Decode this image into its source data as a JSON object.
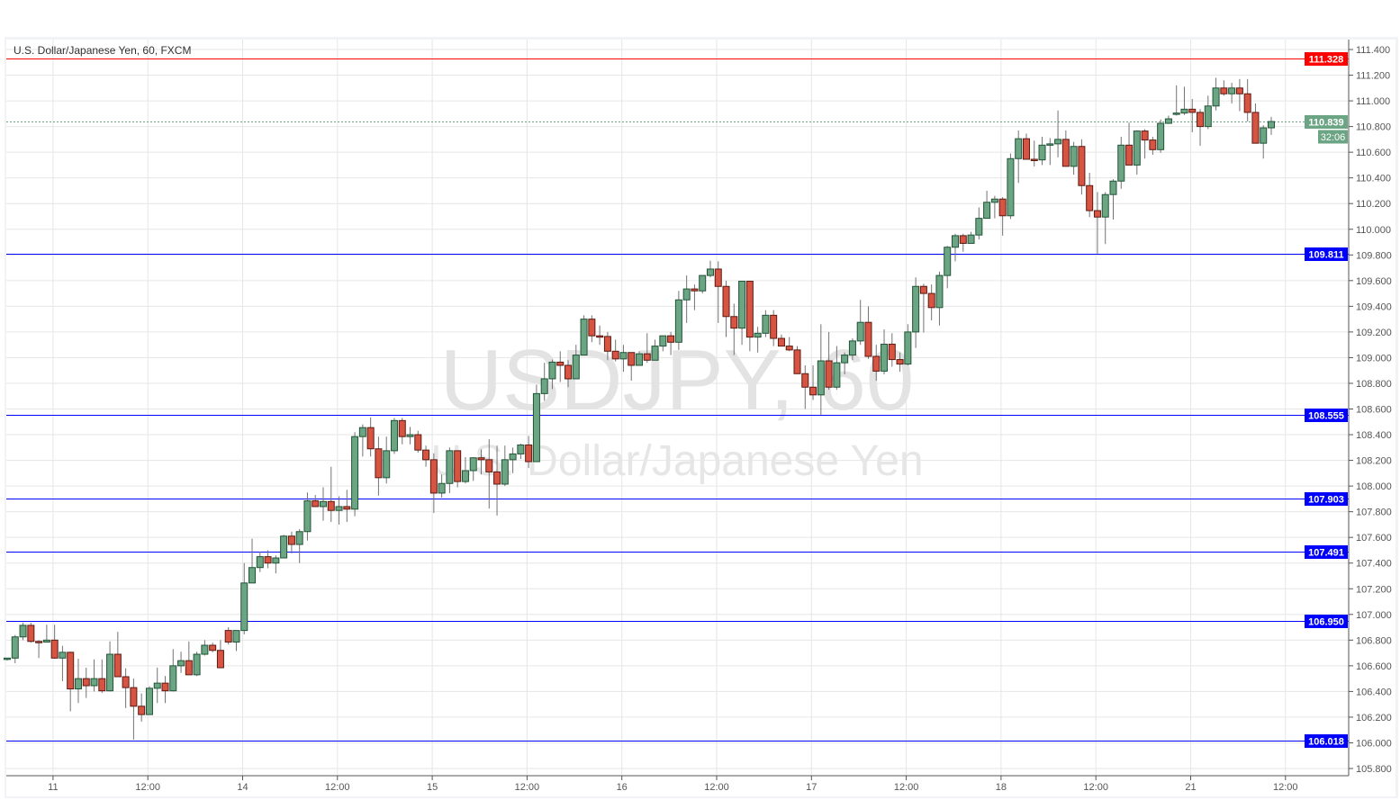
{
  "header": {
    "title": "U.S. Dollar/Japanese Yen, 60, FXCM"
  },
  "watermark": {
    "symbol": "USDJPY, 60",
    "name": "U.S. Dollar/Japanese Yen"
  },
  "chart_data": {
    "type": "candlestick",
    "title": "U.S. Dollar/Japanese Yen, 60, FXCM",
    "symbol": "USDJPY",
    "interval_minutes": 60,
    "source": "FXCM",
    "ylim": [
      105.72,
      111.48
    ],
    "y_ticks": [
      "111.400",
      "111.200",
      "111.000",
      "110.800",
      "110.600",
      "110.400",
      "110.200",
      "110.000",
      "109.800",
      "109.600",
      "109.400",
      "109.200",
      "109.000",
      "108.800",
      "108.600",
      "108.400",
      "108.200",
      "108.000",
      "107.800",
      "107.600",
      "107.400",
      "107.200",
      "107.000",
      "106.800",
      "106.600",
      "106.400",
      "106.200",
      "106.000",
      "105.800"
    ],
    "x_ticks": [
      "11",
      "12:00",
      "14",
      "12:00",
      "15",
      "12:00",
      "16",
      "12:00",
      "17",
      "12:00",
      "18",
      "12:00",
      "21",
      "12:00"
    ],
    "grid": true,
    "ohlc_fields": [
      "open",
      "high",
      "low",
      "close"
    ],
    "candles": [
      [
        106.65,
        106.66,
        106.64,
        106.66
      ],
      [
        106.66,
        106.84,
        106.62,
        106.825
      ],
      [
        106.825,
        106.935,
        106.8,
        106.915
      ],
      [
        106.915,
        106.935,
        106.78,
        106.79
      ],
      [
        106.79,
        106.8,
        106.66,
        106.785
      ],
      [
        106.785,
        106.92,
        106.78,
        106.8
      ],
      [
        106.8,
        106.92,
        106.655,
        106.66
      ],
      [
        106.66,
        106.755,
        106.48,
        106.705
      ],
      [
        106.705,
        106.71,
        106.245,
        106.42
      ],
      [
        106.42,
        106.655,
        106.31,
        106.5
      ],
      [
        106.5,
        106.585,
        106.35,
        106.445
      ],
      [
        106.445,
        106.65,
        106.4,
        106.5
      ],
      [
        106.5,
        106.65,
        106.39,
        106.405
      ],
      [
        106.405,
        106.79,
        106.4,
        106.69
      ],
      [
        106.69,
        106.865,
        106.515,
        106.515
      ],
      [
        106.515,
        106.58,
        106.27,
        106.43
      ],
      [
        106.43,
        106.5,
        106.025,
        106.285
      ],
      [
        106.285,
        106.385,
        106.165,
        106.22
      ],
      [
        106.22,
        106.44,
        106.22,
        106.425
      ],
      [
        106.425,
        106.585,
        106.31,
        106.465
      ],
      [
        106.465,
        106.52,
        106.31,
        106.405
      ],
      [
        106.405,
        106.73,
        106.4,
        106.6
      ],
      [
        106.6,
        106.71,
        106.545,
        106.64
      ],
      [
        106.64,
        106.79,
        106.53,
        106.53
      ],
      [
        106.53,
        106.71,
        106.52,
        106.69
      ],
      [
        106.69,
        106.8,
        106.68,
        106.76
      ],
      [
        106.76,
        106.78,
        106.705,
        106.72
      ],
      [
        106.72,
        106.8,
        106.585,
        106.585
      ],
      [
        106.875,
        106.9,
        106.765,
        106.785
      ],
      [
        106.785,
        106.875,
        106.715,
        106.875
      ],
      [
        106.875,
        107.4,
        106.845,
        107.245
      ],
      [
        107.245,
        107.59,
        107.245,
        107.365
      ],
      [
        107.365,
        107.49,
        107.33,
        107.45
      ],
      [
        107.45,
        107.5,
        107.36,
        107.4
      ],
      [
        107.4,
        107.46,
        107.32,
        107.44
      ],
      [
        107.44,
        107.62,
        107.44,
        107.61
      ],
      [
        107.61,
        107.645,
        107.475,
        107.545
      ],
      [
        107.545,
        107.665,
        107.4,
        107.645
      ],
      [
        107.645,
        107.95,
        107.575,
        107.885
      ],
      [
        107.885,
        107.93,
        107.84,
        107.84
      ],
      [
        107.84,
        107.99,
        107.73,
        107.88
      ],
      [
        107.88,
        108.15,
        107.72,
        107.81
      ],
      [
        107.81,
        107.92,
        107.7,
        107.84
      ],
      [
        107.84,
        107.97,
        107.72,
        107.82
      ],
      [
        107.82,
        108.42,
        107.765,
        108.385
      ],
      [
        108.385,
        108.48,
        108.23,
        108.455
      ],
      [
        108.455,
        108.535,
        108.23,
        108.29
      ],
      [
        108.29,
        108.385,
        107.925,
        108.065
      ],
      [
        108.065,
        108.385,
        108.02,
        108.275
      ],
      [
        108.275,
        108.53,
        108.25,
        108.51
      ],
      [
        108.51,
        108.53,
        108.325,
        108.385
      ],
      [
        108.385,
        108.46,
        108.325,
        108.4
      ],
      [
        108.4,
        108.43,
        108.26,
        108.28
      ],
      [
        108.28,
        108.315,
        108.15,
        108.205
      ],
      [
        108.205,
        108.255,
        107.79,
        107.945
      ],
      [
        107.945,
        108.09,
        107.91,
        108.02
      ],
      [
        108.02,
        108.3,
        107.945,
        108.275
      ],
      [
        108.275,
        108.275,
        107.99,
        108.035
      ],
      [
        108.035,
        108.225,
        108.02,
        108.12
      ],
      [
        108.12,
        108.225,
        108.04,
        108.22
      ],
      [
        108.22,
        108.285,
        108.09,
        108.205
      ],
      [
        108.205,
        108.365,
        107.825,
        108.11
      ],
      [
        108.11,
        108.315,
        107.77,
        108.015
      ],
      [
        108.015,
        108.315,
        108.0,
        108.205
      ],
      [
        108.205,
        108.3,
        108.1,
        108.25
      ],
      [
        108.25,
        108.33,
        108.21,
        108.32
      ],
      [
        108.32,
        108.39,
        108.14,
        108.19
      ],
      [
        108.19,
        108.79,
        108.19,
        108.72
      ],
      [
        108.72,
        108.96,
        108.665,
        108.835
      ],
      [
        108.835,
        108.985,
        108.755,
        108.965
      ],
      [
        108.965,
        109.05,
        108.81,
        108.94
      ],
      [
        108.94,
        108.98,
        108.77,
        108.835
      ],
      [
        108.835,
        109.1,
        108.835,
        109.02
      ],
      [
        109.02,
        109.33,
        109.02,
        109.3
      ],
      [
        109.3,
        109.33,
        109.12,
        109.17
      ],
      [
        109.17,
        109.25,
        109.1,
        109.165
      ],
      [
        109.165,
        109.2,
        108.98,
        109.05
      ],
      [
        109.05,
        109.14,
        108.97,
        108.99
      ],
      [
        108.99,
        109.1,
        108.89,
        109.04
      ],
      [
        109.04,
        109.04,
        108.82,
        108.94
      ],
      [
        108.94,
        109.05,
        108.94,
        109.03
      ],
      [
        109.03,
        109.19,
        108.96,
        108.98
      ],
      [
        108.98,
        109.14,
        108.98,
        109.09
      ],
      [
        109.09,
        109.17,
        109.05,
        109.17
      ],
      [
        109.17,
        109.2,
        109.02,
        109.12
      ],
      [
        109.12,
        109.52,
        109.06,
        109.45
      ],
      [
        109.45,
        109.64,
        109.27,
        109.535
      ],
      [
        109.535,
        109.57,
        109.37,
        109.52
      ],
      [
        109.52,
        109.64,
        109.5,
        109.64
      ],
      [
        109.64,
        109.755,
        109.625,
        109.69
      ],
      [
        109.69,
        109.75,
        109.27,
        109.555
      ],
      [
        109.555,
        109.6,
        109.16,
        109.32
      ],
      [
        109.32,
        109.42,
        109.02,
        109.23
      ],
      [
        109.23,
        109.595,
        109.1,
        109.595
      ],
      [
        109.595,
        109.595,
        109.05,
        109.16
      ],
      [
        109.16,
        109.24,
        109.04,
        109.19
      ],
      [
        109.19,
        109.37,
        109.16,
        109.33
      ],
      [
        109.33,
        109.37,
        109.09,
        109.15
      ],
      [
        109.15,
        109.18,
        109.09,
        109.09
      ],
      [
        109.09,
        109.16,
        109.05,
        109.06
      ],
      [
        109.06,
        109.09,
        108.875,
        108.875
      ],
      [
        108.875,
        108.94,
        108.6,
        108.77
      ],
      [
        108.77,
        108.94,
        108.67,
        108.71
      ],
      [
        108.71,
        109.26,
        108.555,
        108.975
      ],
      [
        108.975,
        109.2,
        108.75,
        108.77
      ],
      [
        108.77,
        109.09,
        108.75,
        108.96
      ],
      [
        108.96,
        109.04,
        108.87,
        109.02
      ],
      [
        109.02,
        109.15,
        108.98,
        109.13
      ],
      [
        109.13,
        109.45,
        109.1,
        109.275
      ],
      [
        109.275,
        109.4,
        108.99,
        109.01
      ],
      [
        109.01,
        109.1,
        108.82,
        108.895
      ],
      [
        108.895,
        109.22,
        108.87,
        109.105
      ],
      [
        109.105,
        109.19,
        108.93,
        108.985
      ],
      [
        108.985,
        109.04,
        108.89,
        108.95
      ],
      [
        108.95,
        109.26,
        108.94,
        109.2
      ],
      [
        109.2,
        109.625,
        109.075,
        109.555
      ],
      [
        109.555,
        109.575,
        109.195,
        109.5
      ],
      [
        109.5,
        109.57,
        109.29,
        109.39
      ],
      [
        109.39,
        109.67,
        109.25,
        109.64
      ],
      [
        109.64,
        109.87,
        109.54,
        109.86
      ],
      [
        109.86,
        109.965,
        109.75,
        109.95
      ],
      [
        109.95,
        109.965,
        109.825,
        109.89
      ],
      [
        109.89,
        109.98,
        109.89,
        109.955
      ],
      [
        109.955,
        110.17,
        109.92,
        110.085
      ],
      [
        110.085,
        110.3,
        110.085,
        110.21
      ],
      [
        110.21,
        110.26,
        110.085,
        110.235
      ],
      [
        110.235,
        110.25,
        109.95,
        110.105
      ],
      [
        110.105,
        110.59,
        110.08,
        110.55
      ],
      [
        110.55,
        110.77,
        110.36,
        110.705
      ],
      [
        110.705,
        110.745,
        110.545,
        110.545
      ],
      [
        110.545,
        110.69,
        110.49,
        110.535
      ],
      [
        110.54,
        110.72,
        110.5,
        110.655
      ],
      [
        110.655,
        110.71,
        110.5,
        110.665
      ],
      [
        110.665,
        110.925,
        110.56,
        110.7
      ],
      [
        110.7,
        110.77,
        110.49,
        110.49
      ],
      [
        110.49,
        110.68,
        110.425,
        110.645
      ],
      [
        110.645,
        110.7,
        110.27,
        110.34
      ],
      [
        110.34,
        110.44,
        110.095,
        110.145
      ],
      [
        110.145,
        110.29,
        109.81,
        110.095
      ],
      [
        110.095,
        110.29,
        109.885,
        110.27
      ],
      [
        110.27,
        110.39,
        110.075,
        110.375
      ],
      [
        110.375,
        110.72,
        110.315,
        110.655
      ],
      [
        110.655,
        110.83,
        110.5,
        110.5
      ],
      [
        110.5,
        110.77,
        110.425,
        110.765
      ],
      [
        110.765,
        110.78,
        110.55,
        110.695
      ],
      [
        110.695,
        110.72,
        110.58,
        110.62
      ],
      [
        110.62,
        110.855,
        110.595,
        110.825
      ],
      [
        110.825,
        110.885,
        110.82,
        110.86
      ],
      [
        110.895,
        111.12,
        110.885,
        110.905
      ],
      [
        110.905,
        111.11,
        110.89,
        110.935
      ],
      [
        110.935,
        111.015,
        110.755,
        110.91
      ],
      [
        110.91,
        110.935,
        110.65,
        110.8
      ],
      [
        110.8,
        111.04,
        110.78,
        110.96
      ],
      [
        110.96,
        111.18,
        110.925,
        111.1
      ],
      [
        111.1,
        111.16,
        111.04,
        111.055
      ],
      [
        111.055,
        111.14,
        110.98,
        111.1
      ],
      [
        111.1,
        111.17,
        110.92,
        111.055
      ],
      [
        111.055,
        111.17,
        110.84,
        110.91
      ],
      [
        110.91,
        110.98,
        110.67,
        110.67
      ],
      [
        110.67,
        110.81,
        110.55,
        110.79
      ],
      [
        110.79,
        110.875,
        110.735,
        110.839
      ]
    ],
    "horizontal_lines": [
      {
        "price": "111.328",
        "color": "#ff0000"
      },
      {
        "price": "109.811",
        "color": "#0000ff"
      },
      {
        "price": "108.555",
        "color": "#0000ff"
      },
      {
        "price": "107.903",
        "color": "#0000ff"
      },
      {
        "price": "107.491",
        "color": "#0000ff"
      },
      {
        "price": "106.950",
        "color": "#0000ff"
      },
      {
        "price": "106.018",
        "color": "#0000ff"
      }
    ],
    "last_price": {
      "price": "110.839",
      "countdown": "32:06",
      "color": "#6ba583"
    },
    "colors": {
      "up_fill": "#6ba583",
      "up_border": "#225437",
      "down_fill": "#d75442",
      "down_border": "#5b1a13",
      "wick": "#737375",
      "grid": "#e6e6e6"
    }
  }
}
